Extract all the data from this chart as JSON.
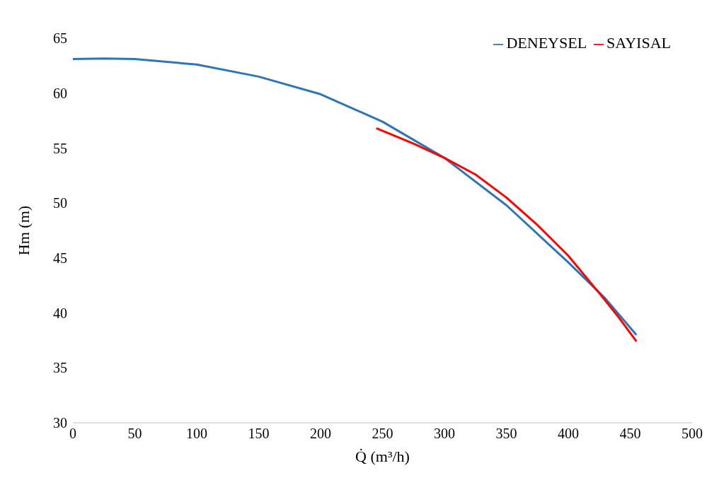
{
  "chart_data": {
    "type": "line",
    "xlabel": "Q̇ (m³/h)",
    "ylabel": "Hm (m)",
    "xlim": [
      0,
      500
    ],
    "xticks": [
      0,
      50,
      100,
      150,
      200,
      250,
      300,
      350,
      400,
      450,
      500
    ],
    "ylim": [
      30,
      65
    ],
    "yticks": [
      30,
      35,
      40,
      45,
      50,
      55,
      60,
      65
    ],
    "grid": false,
    "legend": "top right",
    "marker": "none",
    "line_style": "solid",
    "series": [
      {
        "name": "DENEYSEL",
        "color": "#2e75b6",
        "x": [
          0,
          25,
          50,
          100,
          150,
          200,
          250,
          300,
          350,
          400,
          430,
          455
        ],
        "values": [
          63.1,
          63.15,
          63.1,
          62.6,
          61.5,
          59.9,
          57.4,
          54.1,
          49.8,
          44.6,
          41.3,
          38.0
        ]
      },
      {
        "name": "SAYISAL",
        "color": "#ff0000",
        "x": [
          245,
          275,
          300,
          325,
          350,
          375,
          400,
          425,
          440,
          455
        ],
        "values": [
          56.8,
          55.4,
          54.1,
          52.6,
          50.5,
          48.0,
          45.2,
          41.8,
          39.7,
          37.4
        ]
      }
    ]
  }
}
